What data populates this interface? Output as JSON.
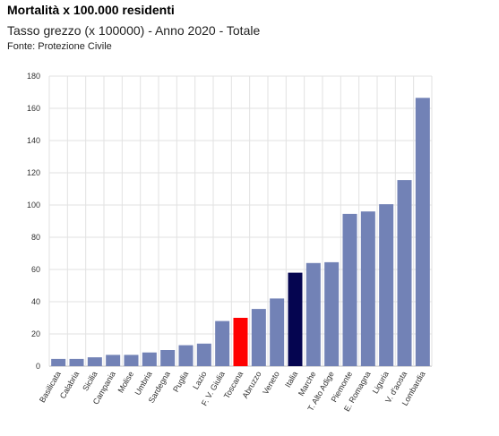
{
  "header": {
    "title": "Mortalità x 100.000 residenti",
    "subtitle": "Tasso grezzo (x 100000) - Anno 2020 - Totale",
    "source": "Fonte: Protezione Civile"
  },
  "colors": {
    "default_bar": "#7282b6",
    "highlight_red": "#ff0000",
    "highlight_navy": "#050550",
    "grid": "#e2e2e2",
    "axis": "#bbbbbb"
  },
  "chart_data": {
    "type": "bar",
    "title": "Mortalità x 100.000 residenti",
    "subtitle": "Tasso grezzo (x 100000) - Anno 2020 - Totale",
    "xlabel": "",
    "ylabel": "",
    "ylim": [
      0,
      180
    ],
    "yticks": [
      0,
      20,
      40,
      60,
      80,
      100,
      120,
      140,
      160,
      180
    ],
    "grid": true,
    "legend": "none",
    "categories": [
      "Basilicata",
      "Calabria",
      "Sicilia",
      "Campania",
      "Molise",
      "Umbria",
      "Sardegna",
      "Puglia",
      "Lazio",
      "F. V. Giulia",
      "Toscana",
      "Abruzzo",
      "Veneto",
      "Italia",
      "Marche",
      "T. Alto Adige",
      "Piemonte",
      "E. Romagna",
      "Liguria",
      "V. d'aosta",
      "Lombardia"
    ],
    "values": [
      4.5,
      4.5,
      5.5,
      7,
      7,
      8.5,
      10,
      13,
      14,
      28,
      30,
      35.5,
      42,
      58,
      64,
      64.5,
      94.5,
      96,
      100.5,
      115.5,
      166.5
    ],
    "bar_colors": [
      "#7282b6",
      "#7282b6",
      "#7282b6",
      "#7282b6",
      "#7282b6",
      "#7282b6",
      "#7282b6",
      "#7282b6",
      "#7282b6",
      "#7282b6",
      "#ff0000",
      "#7282b6",
      "#7282b6",
      "#050550",
      "#7282b6",
      "#7282b6",
      "#7282b6",
      "#7282b6",
      "#7282b6",
      "#7282b6",
      "#7282b6"
    ]
  }
}
